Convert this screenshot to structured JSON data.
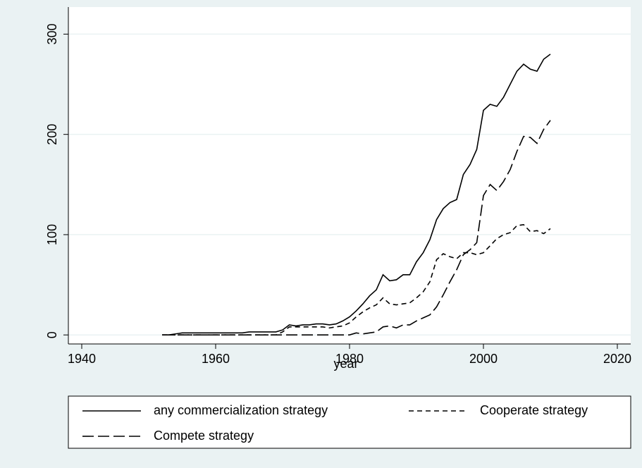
{
  "chart_data": {
    "type": "line",
    "x_label": "year",
    "x": [
      1952,
      1953,
      1954,
      1955,
      1956,
      1957,
      1958,
      1959,
      1960,
      1961,
      1962,
      1963,
      1964,
      1965,
      1966,
      1967,
      1968,
      1969,
      1970,
      1971,
      1972,
      1973,
      1974,
      1975,
      1976,
      1977,
      1978,
      1979,
      1980,
      1981,
      1982,
      1983,
      1984,
      1985,
      1986,
      1987,
      1988,
      1989,
      1990,
      1991,
      1992,
      1993,
      1994,
      1995,
      1996,
      1997,
      1998,
      1999,
      2000,
      2001,
      2002,
      2003,
      2004,
      2005,
      2006,
      2007,
      2008,
      2009,
      2010
    ],
    "series": [
      {
        "name": "any commercialization strategy",
        "color": "#000000",
        "dash": "none",
        "values": [
          0,
          0,
          1,
          2,
          2,
          2,
          2,
          2,
          2,
          2,
          2,
          2,
          2,
          3,
          3,
          3,
          3,
          3,
          5,
          10,
          9,
          10,
          10,
          11,
          11,
          10,
          11,
          14,
          18,
          24,
          31,
          39,
          45,
          60,
          54,
          55,
          60,
          60,
          73,
          82,
          95,
          115,
          126,
          132,
          135,
          160,
          170,
          185,
          224,
          230,
          228,
          237,
          250,
          263,
          270,
          265,
          263,
          275,
          280
        ]
      },
      {
        "name": "Cooperate strategy",
        "color": "#000000",
        "dash": "7 5",
        "values": [
          0,
          0,
          0,
          0,
          0,
          0,
          0,
          0,
          0,
          0,
          0,
          0,
          0,
          0,
          0,
          0,
          0,
          0,
          3,
          8,
          8,
          8,
          8,
          8,
          8,
          7,
          8,
          9,
          12,
          18,
          23,
          27,
          30,
          37,
          31,
          30,
          31,
          32,
          37,
          43,
          53,
          75,
          81,
          78,
          76,
          82,
          82,
          80,
          82,
          89,
          96,
          100,
          102,
          109,
          110,
          103,
          104,
          101,
          106
        ]
      },
      {
        "name": "Compete strategy",
        "color": "#000000",
        "dash": "16 6",
        "values": [
          0,
          0,
          0,
          0,
          0,
          0,
          0,
          0,
          0,
          0,
          0,
          0,
          0,
          0,
          0,
          0,
          0,
          0,
          0,
          0,
          0,
          0,
          0,
          0,
          0,
          0,
          0,
          0,
          0,
          2,
          1,
          2,
          3,
          8,
          9,
          7,
          10,
          10,
          14,
          17,
          20,
          28,
          40,
          53,
          65,
          80,
          85,
          92,
          139,
          150,
          144,
          153,
          165,
          183,
          198,
          197,
          191,
          205,
          214
        ]
      }
    ],
    "xlim": [
      1938,
      2022
    ],
    "ylim": [
      -9,
      327
    ],
    "xticks": [
      1940,
      1960,
      1980,
      2000,
      2020
    ],
    "yticks": [
      0,
      100,
      200,
      300
    ],
    "grid": true
  }
}
